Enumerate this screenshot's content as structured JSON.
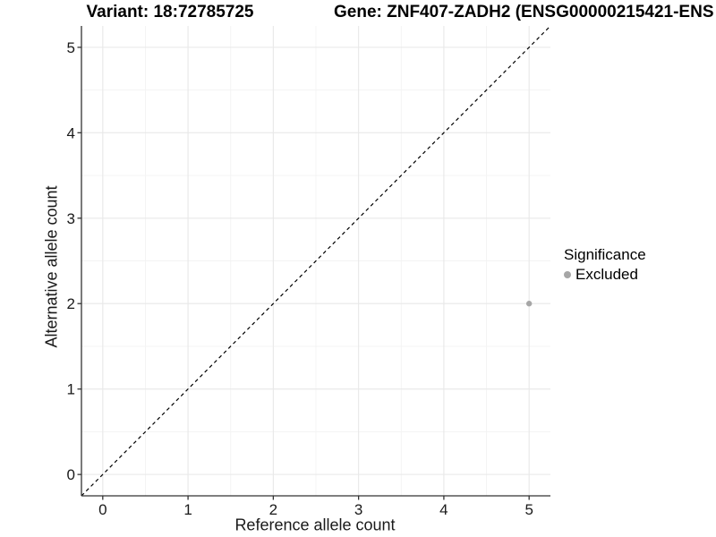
{
  "chart_data": {
    "type": "scatter",
    "titles": {
      "left": "Variant: 18:72785725",
      "right": "Gene: ZNF407-ZADH2 (ENSG00000215421-ENS"
    },
    "xlabel": "Reference allele count",
    "ylabel": "Alternative allele count",
    "xticks": [
      0,
      1,
      2,
      3,
      4,
      5
    ],
    "yticks": [
      0,
      1,
      2,
      3,
      4,
      5
    ],
    "xlim": [
      -0.25,
      5.25
    ],
    "ylim": [
      -0.25,
      5.25
    ],
    "grid": {
      "major": true,
      "minor": true
    },
    "identity_line": {
      "style": "dashed",
      "color": "#000000"
    },
    "series": [
      {
        "name": "Excluded",
        "color": "#a6a6a6",
        "points": [
          {
            "x": 5,
            "y": 2
          }
        ]
      }
    ],
    "legend": {
      "title": "Significance",
      "position": "right",
      "items": [
        {
          "label": "Excluded",
          "color": "#a6a6a6"
        }
      ]
    },
    "colors": {
      "axis_line": "#333333",
      "tick_mark": "#333333",
      "tick_label": "#1a1a1a",
      "grid_major": "#e8e8e8",
      "grid_minor": "#f3f3f3",
      "background": "#ffffff"
    }
  }
}
